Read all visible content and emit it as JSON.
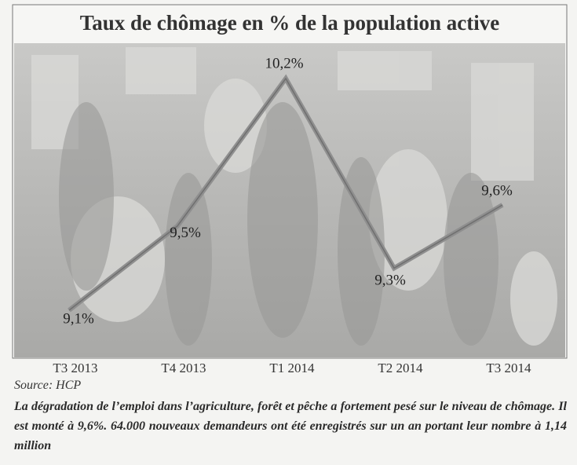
{
  "chart_data": {
    "type": "line",
    "title": "Taux de chômage en % de la population active",
    "categories": [
      "T3 2013",
      "T4 2013",
      "T1 2014",
      "T2 2014",
      "T3 2014"
    ],
    "values": [
      9.1,
      9.5,
      10.2,
      9.3,
      9.6
    ],
    "value_labels": [
      "9,1%",
      "9,5%",
      "10,2%",
      "9,3%",
      "9,6%"
    ],
    "color": "#8f8f8f",
    "source": "Source: HCP",
    "caption": "La dégradation de l’emploi dans l’agriculture, forêt et pêche a fortement pesé sur le niveau de chômage. Il est monté à 9,6%. 64.000 nouveaux demandeurs ont été enregistrés sur un an portant leur nombre à 1,14 million"
  }
}
